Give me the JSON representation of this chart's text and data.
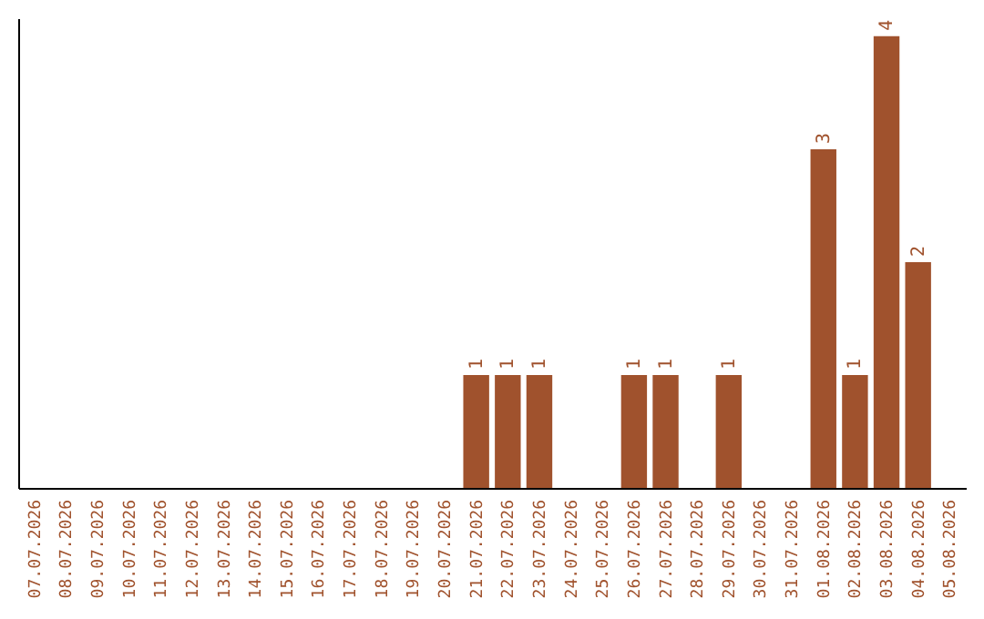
{
  "chart_data": {
    "type": "bar",
    "categories": [
      "07.07.2026",
      "08.07.2026",
      "09.07.2026",
      "10.07.2026",
      "11.07.2026",
      "12.07.2026",
      "13.07.2026",
      "14.07.2026",
      "15.07.2026",
      "16.07.2026",
      "17.07.2026",
      "18.07.2026",
      "19.07.2026",
      "20.07.2026",
      "21.07.2026",
      "22.07.2026",
      "23.07.2026",
      "24.07.2026",
      "25.07.2026",
      "26.07.2026",
      "27.07.2026",
      "28.07.2026",
      "29.07.2026",
      "30.07.2026",
      "31.07.2026",
      "01.08.2026",
      "02.08.2026",
      "03.08.2026",
      "04.08.2026",
      "05.08.2026"
    ],
    "values": [
      null,
      null,
      null,
      null,
      null,
      null,
      null,
      null,
      null,
      null,
      null,
      null,
      null,
      null,
      1,
      1,
      1,
      null,
      null,
      1,
      1,
      null,
      1,
      null,
      null,
      3,
      1,
      4,
      2,
      null
    ],
    "data_labels": true,
    "color": "#a0522d",
    "ylim": [
      0,
      4.16
    ],
    "tick_labels": "x",
    "grid": false
  }
}
